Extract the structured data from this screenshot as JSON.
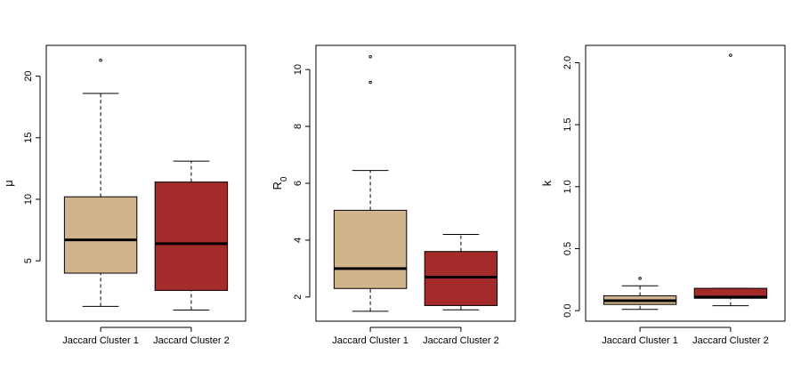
{
  "chart_data": [
    {
      "type": "boxplot",
      "ylabel": "μ",
      "ylim": [
        0.1,
        22.5
      ],
      "yticks": [
        5,
        10,
        15,
        20
      ],
      "categories": [
        "Jaccard Cluster 1",
        "Jaccard Cluster 2"
      ],
      "boxes": [
        {
          "name": "Jaccard Cluster 1",
          "color": "#d2b48c",
          "whisker_low": 1.3,
          "q1": 4.0,
          "median": 6.7,
          "q3": 10.2,
          "whisker_high": 18.6,
          "outliers": [
            21.3
          ]
        },
        {
          "name": "Jaccard Cluster 2",
          "color": "#a52a2a",
          "whisker_low": 1.0,
          "q1": 2.6,
          "median": 6.4,
          "q3": 11.4,
          "whisker_high": 13.1,
          "outliers": []
        }
      ]
    },
    {
      "type": "boxplot",
      "ylabel": "R",
      "ylabel_sub": "0",
      "ylim": [
        1.15,
        10.85
      ],
      "yticks": [
        2,
        4,
        6,
        8,
        10
      ],
      "categories": [
        "Jaccard Cluster 1",
        "Jaccard Cluster 2"
      ],
      "boxes": [
        {
          "name": "Jaccard Cluster 1",
          "color": "#d2b48c",
          "whisker_low": 1.5,
          "q1": 2.3,
          "median": 3.0,
          "q3": 5.05,
          "whisker_high": 6.45,
          "outliers": [
            9.55,
            10.45
          ]
        },
        {
          "name": "Jaccard Cluster 2",
          "color": "#a52a2a",
          "whisker_low": 1.55,
          "q1": 1.7,
          "median": 2.7,
          "q3": 3.6,
          "whisker_high": 4.2,
          "outliers": []
        }
      ]
    },
    {
      "type": "boxplot",
      "ylabel": "k",
      "ylim": [
        -0.085,
        2.14
      ],
      "yticks": [
        0.0,
        0.5,
        1.0,
        1.5,
        2.0
      ],
      "ytick_labels": [
        "0.0",
        "0.5",
        "1.0",
        "1.5",
        "2.0"
      ],
      "categories": [
        "Jaccard Cluster 1",
        "Jaccard Cluster 2"
      ],
      "boxes": [
        {
          "name": "Jaccard Cluster 1",
          "color": "#d2b48c",
          "whisker_low": 0.01,
          "q1": 0.05,
          "median": 0.08,
          "q3": 0.12,
          "whisker_high": 0.2,
          "outliers": [
            0.26
          ]
        },
        {
          "name": "Jaccard Cluster 2",
          "color": "#a52a2a",
          "whisker_low": 0.04,
          "q1": 0.1,
          "median": 0.11,
          "q3": 0.18,
          "whisker_high": 0.18,
          "outliers": [
            2.06
          ]
        }
      ]
    }
  ]
}
